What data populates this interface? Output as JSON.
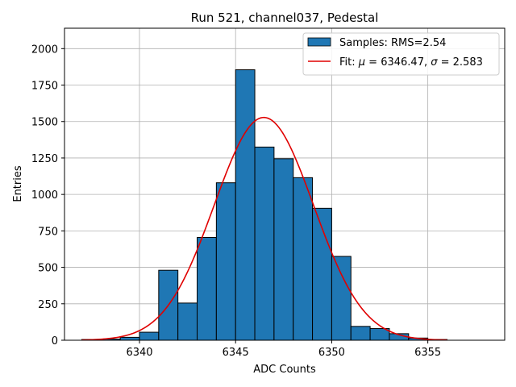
{
  "chart_data": {
    "type": "bar",
    "title": "Run 521, channel037, Pedestal",
    "xlabel": "ADC Counts",
    "ylabel": "Entries",
    "xlim": [
      6336.1,
      6359.0
    ],
    "ylim": [
      0,
      2140
    ],
    "xticks": [
      6340,
      6345,
      6350,
      6355
    ],
    "yticks": [
      0,
      250,
      500,
      750,
      1000,
      1250,
      1500,
      1750,
      2000
    ],
    "grid": true,
    "legend_position": "top-right",
    "bar_color": "#1f77b4",
    "fit_color": "#e00000",
    "histogram": {
      "name": "Samples: RMS=2.54",
      "bins": [
        {
          "x0": 6337.0,
          "x1": 6338.0,
          "value": 5
        },
        {
          "x0": 6338.0,
          "x1": 6339.0,
          "value": 8
        },
        {
          "x0": 6339.0,
          "x1": 6340.0,
          "value": 20
        },
        {
          "x0": 6340.0,
          "x1": 6341.0,
          "value": 55
        },
        {
          "x0": 6341.0,
          "x1": 6342.0,
          "value": 480
        },
        {
          "x0": 6342.0,
          "x1": 6343.0,
          "value": 255
        },
        {
          "x0": 6343.0,
          "x1": 6344.0,
          "value": 705
        },
        {
          "x0": 6344.0,
          "x1": 6345.0,
          "value": 1080
        },
        {
          "x0": 6345.0,
          "x1": 6346.0,
          "value": 1855
        },
        {
          "x0": 6346.0,
          "x1": 6347.0,
          "value": 1325
        },
        {
          "x0": 6347.0,
          "x1": 6348.0,
          "value": 1245
        },
        {
          "x0": 6348.0,
          "x1": 6349.0,
          "value": 1115
        },
        {
          "x0": 6349.0,
          "x1": 6350.0,
          "value": 905
        },
        {
          "x0": 6350.0,
          "x1": 6351.0,
          "value": 575
        },
        {
          "x0": 6351.0,
          "x1": 6352.0,
          "value": 95
        },
        {
          "x0": 6352.0,
          "x1": 6353.0,
          "value": 80
        },
        {
          "x0": 6353.0,
          "x1": 6354.0,
          "value": 45
        },
        {
          "x0": 6354.0,
          "x1": 6355.0,
          "value": 15
        },
        {
          "x0": 6355.0,
          "x1": 6356.0,
          "value": 5
        }
      ]
    },
    "fit": {
      "name_prefix": "Fit: ",
      "name_mu": "μ",
      "name_mid": " = 6346.47, ",
      "name_sigma": "σ",
      "name_end": " = 2.583",
      "mu": 6346.47,
      "sigma": 2.583,
      "amplitude": 1528,
      "x_start": 6337.0,
      "x_end": 6356.0
    }
  }
}
